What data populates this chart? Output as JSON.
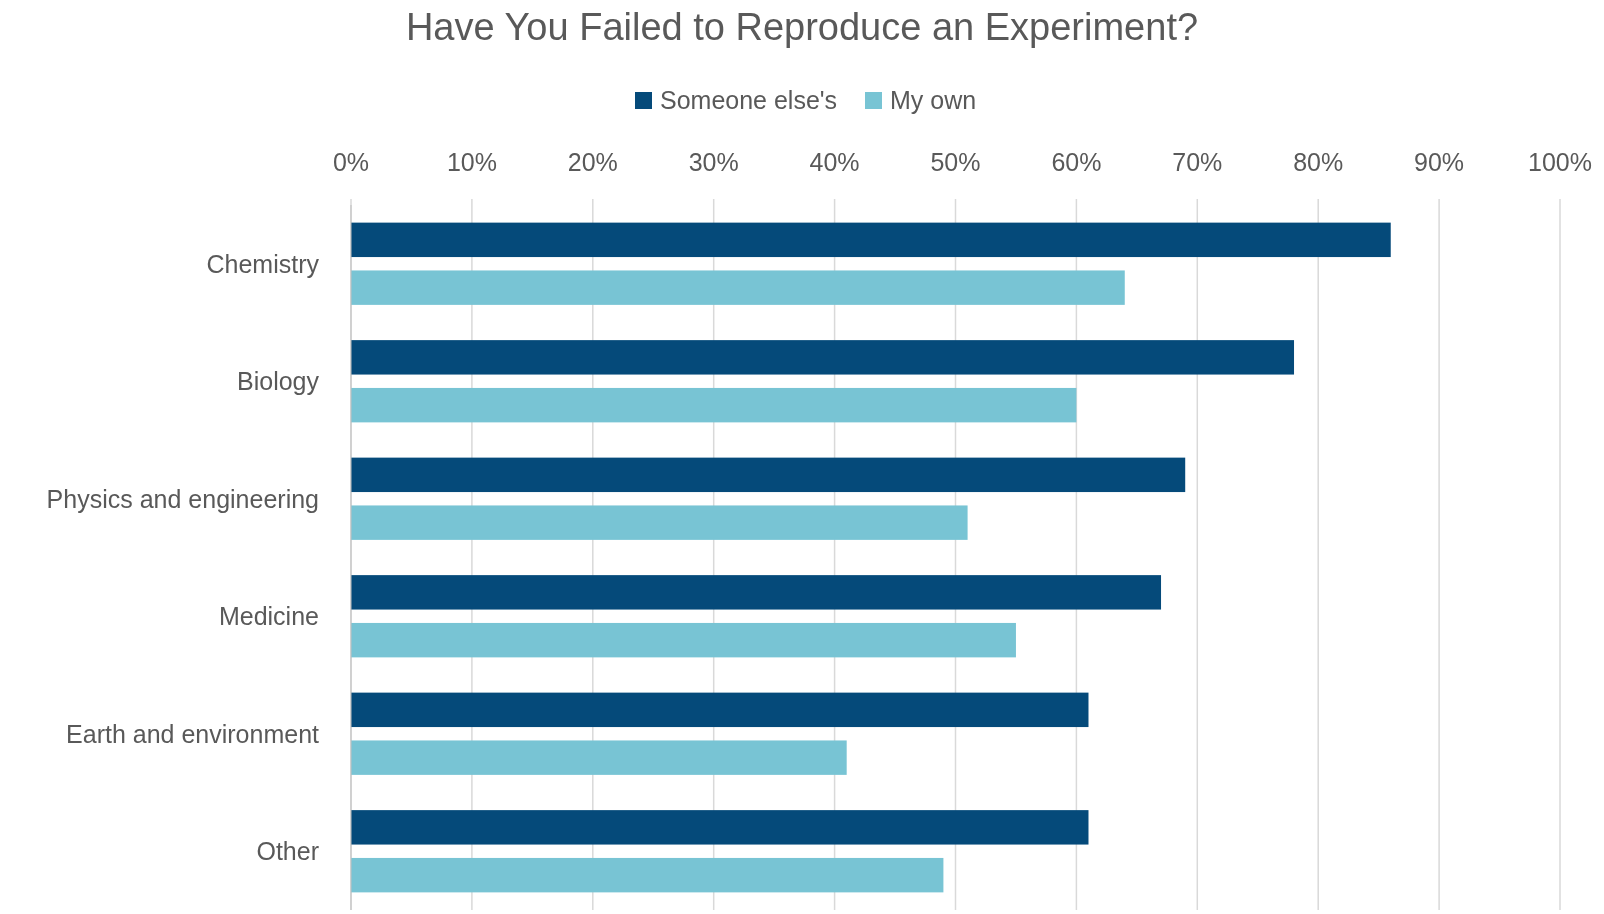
{
  "chart_data": {
    "type": "bar",
    "orientation": "horizontal",
    "title": "Have You Failed to Reproduce an Experiment?",
    "categories": [
      "Chemistry",
      "Biology",
      "Physics and engineering",
      "Medicine",
      "Earth and environment",
      "Other"
    ],
    "series": [
      {
        "name": "Someone else's",
        "color": "#054a7a",
        "values": [
          86,
          78,
          69,
          67,
          61,
          61
        ]
      },
      {
        "name": "My own",
        "color": "#78c4d4",
        "values": [
          64,
          60,
          51,
          55,
          41,
          49
        ]
      }
    ],
    "xlim": [
      0,
      100
    ],
    "xticks": [
      {
        "value": 0,
        "label": "0%"
      },
      {
        "value": 10,
        "label": "10%"
      },
      {
        "value": 20,
        "label": "20%"
      },
      {
        "value": 30,
        "label": "30%"
      },
      {
        "value": 40,
        "label": "40%"
      },
      {
        "value": 50,
        "label": "50%"
      },
      {
        "value": 60,
        "label": "60%"
      },
      {
        "value": 70,
        "label": "70%"
      },
      {
        "value": 80,
        "label": "80%"
      },
      {
        "value": 90,
        "label": "90%"
      },
      {
        "value": 100,
        "label": "100%"
      }
    ],
    "grid": "x",
    "legend": "top"
  }
}
